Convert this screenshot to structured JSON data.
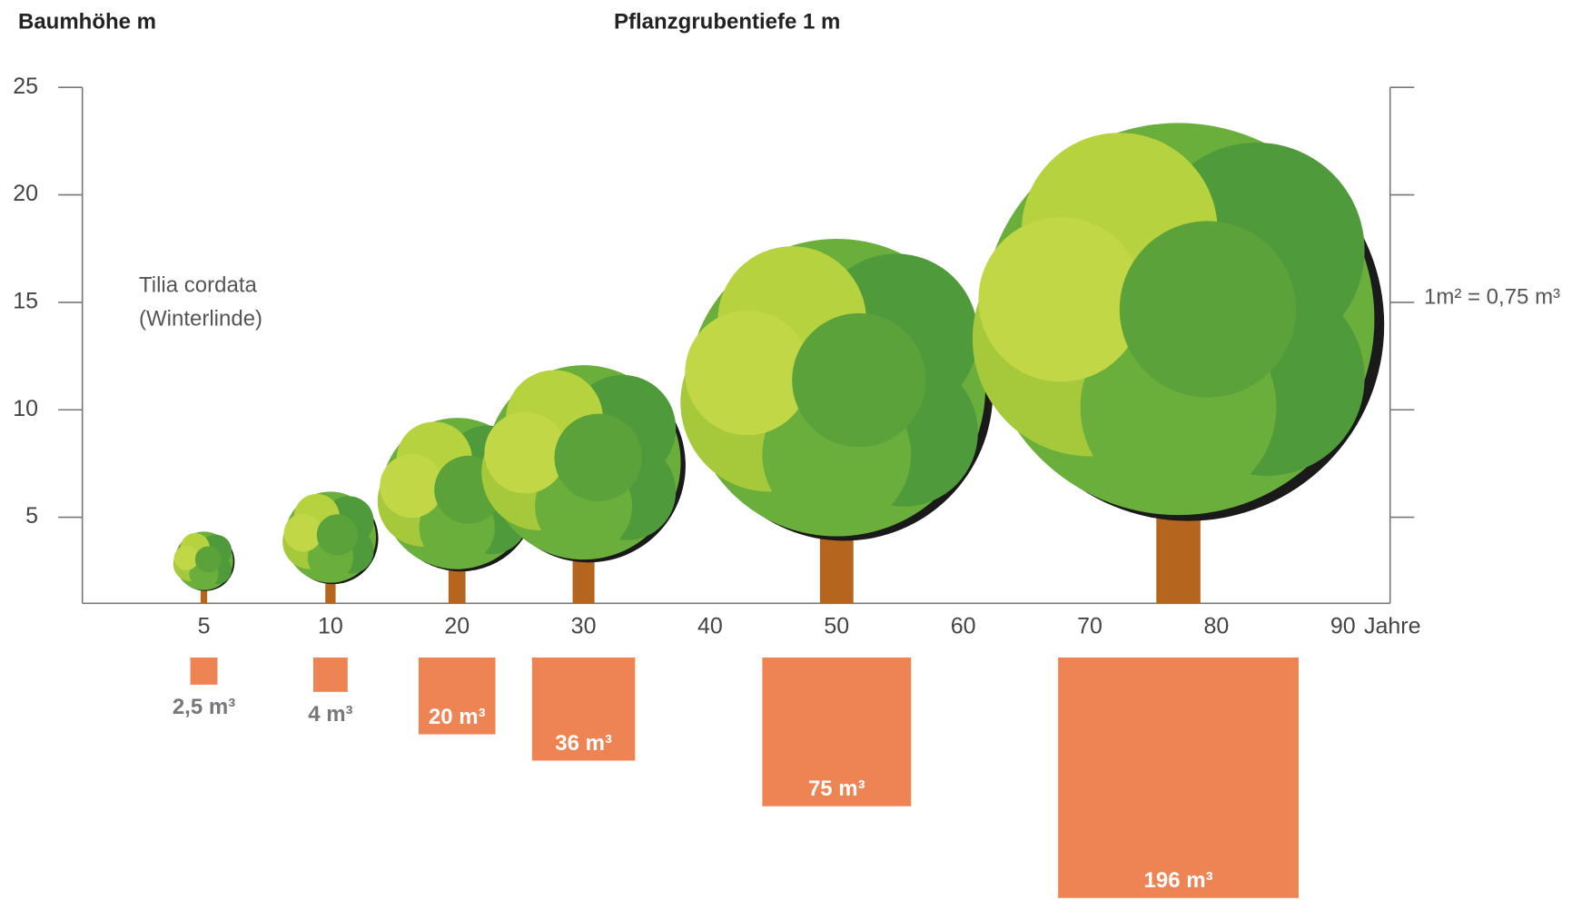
{
  "chart_data": {
    "type": "pictorial",
    "title": "Pflanzgrubentiefe 1 m",
    "y_label": "Baumhöhe m",
    "x_label": "Jahre",
    "species": "Tilia cordata",
    "species_common": "(Winterlinde)",
    "note": "1m² = 0,75 m³",
    "xticks": [
      5,
      10,
      20,
      30,
      40,
      50,
      60,
      70,
      80,
      90
    ],
    "ylim": [
      1,
      25
    ],
    "yticks": [
      5,
      10,
      15,
      20,
      25
    ],
    "trees": {
      "x": [
        5,
        10,
        20,
        30,
        50,
        77
      ],
      "values": [
        4.4,
        6.3,
        9.8,
        12.3,
        18.3,
        23.8
      ],
      "color": "#6aae3c"
    },
    "volumes": {
      "values": [
        2.5,
        4,
        20,
        36,
        75,
        196
      ],
      "value_labels": [
        "2,5 m³",
        "4 m³",
        "20 m³",
        "36 m³",
        "75 m³",
        "196 m³"
      ],
      "color": "#ee8354"
    }
  }
}
